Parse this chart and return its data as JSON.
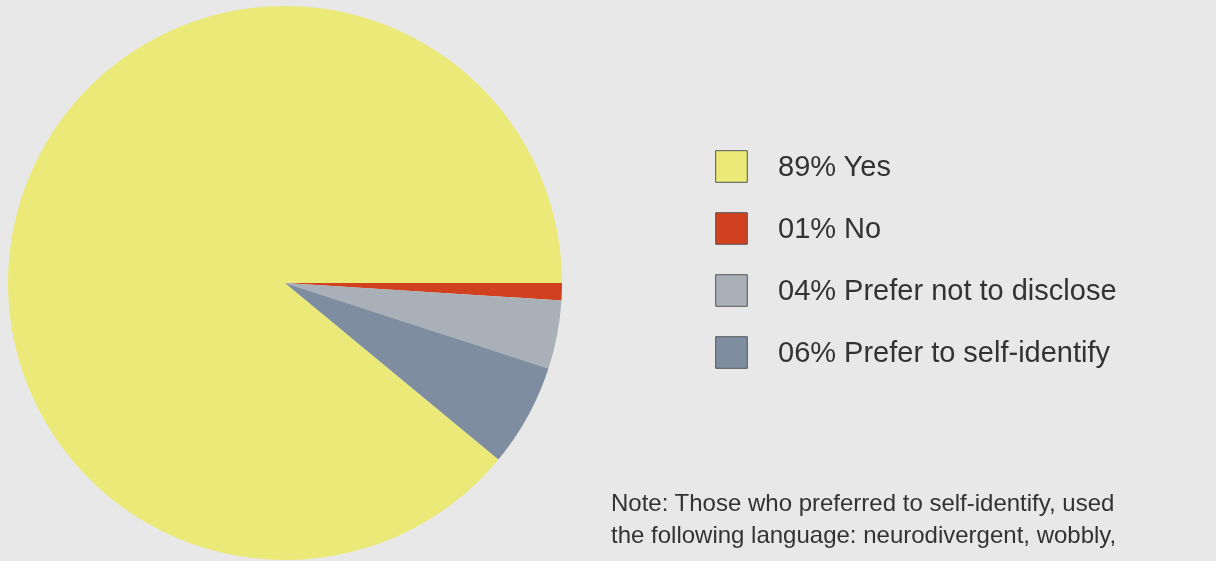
{
  "chart_data": {
    "type": "pie",
    "categories": [
      "Yes",
      "No",
      "Prefer not to disclose",
      "Prefer to self-identify"
    ],
    "values": [
      89,
      1,
      4,
      6
    ],
    "value_labels": [
      "89%",
      "01%",
      "04%",
      "06%"
    ],
    "colors": [
      "#ebe977",
      "#d1401f",
      "#a9b0b8",
      "#7e8ea0"
    ],
    "legend": "right",
    "annotations": [
      "Note: Those who preferred to self-identify, used the following language: neurodivergent, wobbly,"
    ]
  }
}
